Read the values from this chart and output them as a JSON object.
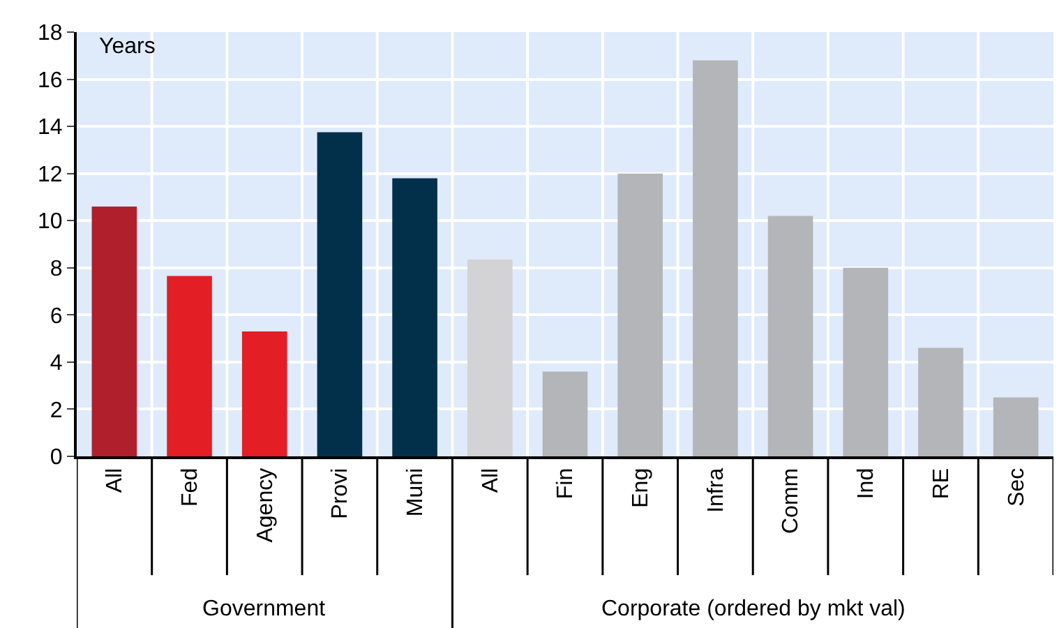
{
  "chart_data": {
    "type": "bar",
    "categories": [
      "All",
      "Fed",
      "Agency",
      "Provi",
      "Muni",
      "All",
      "Fin",
      "Eng",
      "Infra",
      "Comm",
      "Ind",
      "RE",
      "Sec"
    ],
    "values": [
      10.6,
      7.65,
      5.3,
      13.75,
      11.8,
      8.35,
      3.6,
      12.0,
      16.8,
      10.2,
      8.0,
      4.6,
      2.5
    ],
    "colors": [
      "#b0202c",
      "#e31e24",
      "#e31e24",
      "#02304b",
      "#02304b",
      "#d3d3d5",
      "#b4b5b8",
      "#b4b5b8",
      "#b4b5b8",
      "#b4b5b8",
      "#b4b5b8",
      "#b4b5b8",
      "#b4b5b8"
    ],
    "ylim": [
      0,
      18
    ],
    "yticks": [
      0,
      2,
      4,
      6,
      8,
      10,
      12,
      14,
      16,
      18
    ],
    "grid": true,
    "annotations": [
      "Years",
      "Government",
      "Corporate (ordered by mkt val)"
    ]
  }
}
